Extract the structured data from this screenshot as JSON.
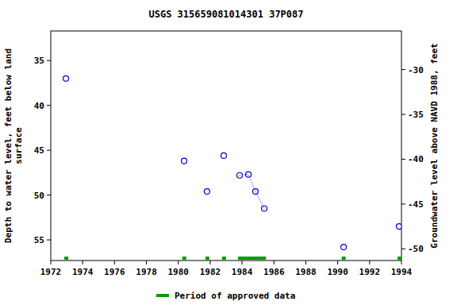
{
  "chart_data": {
    "type": "scatter",
    "title": "USGS 315659081014301 37P087",
    "ylabel": [
      "Depth to water level, feet below land",
      "surface"
    ],
    "y2label": "Groundwater level above NAVD 1988, feet",
    "x": [
      1972.95,
      1980.36,
      1981.8,
      1982.85,
      1983.85,
      1984.4,
      1984.84,
      1985.39,
      1990.37,
      1993.85
    ],
    "series": [
      {
        "type": "scatter",
        "marker": "open-circle",
        "color": "#0000cc",
        "values": [
          37.0,
          46.2,
          49.6,
          45.6,
          47.8,
          47.7,
          49.6,
          51.5,
          55.8,
          53.5
        ]
      },
      {
        "type": "line",
        "line_style": "dotted",
        "color": "#0000cc",
        "values": [
          null,
          null,
          null,
          null,
          47.8,
          47.7,
          49.6,
          51.5,
          null,
          null
        ]
      }
    ],
    "xlim": [
      1972,
      1994
    ],
    "xticks": [
      1972,
      1974,
      1976,
      1978,
      1980,
      1982,
      1984,
      1986,
      1988,
      1990,
      1992,
      1994
    ],
    "ylim": [
      31.7,
      57.3
    ],
    "yticks": [
      35,
      40,
      45,
      50,
      55
    ],
    "y2lim": [
      -25.7,
      -51.3
    ],
    "y2ticks": [
      -30,
      -35,
      -40,
      -45,
      -50
    ],
    "approved_periods": {
      "name": "Period of approved data",
      "color": "#00a000",
      "ranges": [
        [
          1972.85,
          1973.1
        ],
        [
          1980.25,
          1980.5
        ],
        [
          1981.7,
          1981.95
        ],
        [
          1982.75,
          1983.0
        ],
        [
          1983.75,
          1985.5
        ],
        [
          1990.25,
          1990.5
        ],
        [
          1993.75,
          1994.0
        ]
      ]
    },
    "grid": false
  }
}
